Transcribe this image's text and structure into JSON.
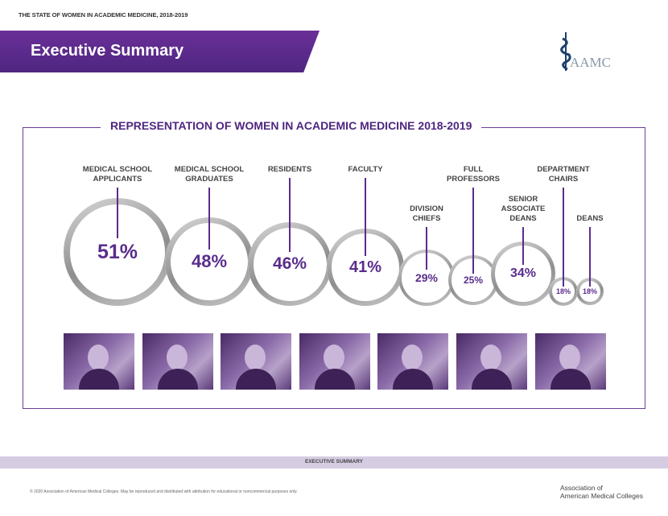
{
  "header": {
    "top_title": "THE STATE OF WOMEN IN ACADEMIC MEDICINE, 2018-2019",
    "banner": "Executive Summary",
    "logo_text": "AAMC",
    "brand_color": "#5a2d8c"
  },
  "chart": {
    "title": "REPRESENTATION OF WOMEN IN ACADEMIC MEDICINE 2018-2019",
    "items": [
      {
        "label": [
          "MEDICAL SCHOOL",
          "APPLICANTS"
        ],
        "value": "51%"
      },
      {
        "label": [
          "MEDICAL SCHOOL",
          "GRADUATES"
        ],
        "value": "48%"
      },
      {
        "label": [
          "RESIDENTS"
        ],
        "value": "46%"
      },
      {
        "label": [
          "FACULTY"
        ],
        "value": "41%"
      },
      {
        "label": [
          "DIVISION",
          "CHIEFS"
        ],
        "value": "29%"
      },
      {
        "label": [
          "FULL",
          "PROFESSORS"
        ],
        "value": "25%"
      },
      {
        "label": [
          "SENIOR",
          "ASSOCIATE",
          "DEANS"
        ],
        "value": "34%"
      },
      {
        "label": [
          "DEPARTMENT",
          "CHAIRS"
        ],
        "value": "18%"
      },
      {
        "label": [
          "DEANS"
        ],
        "value": "18%"
      }
    ]
  },
  "footer": {
    "band": "EXECUTIVE SUMMARY",
    "copyright": "© 2020 Association of American Medical Colleges. May be reproduced and distributed with attribution for educational or noncommercial purposes only.",
    "org_line1": "Association of",
    "org_line2": "American Medical Colleges"
  }
}
